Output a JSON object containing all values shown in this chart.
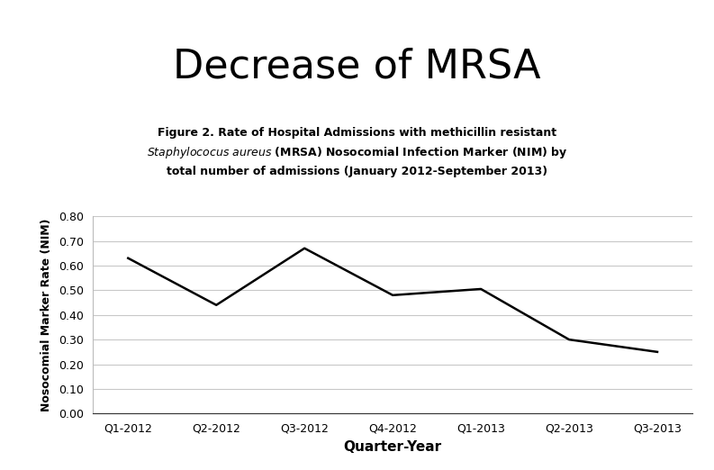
{
  "title": "Decrease of MRSA",
  "title_fontsize": 32,
  "subtitle_line1": "Figure 2. Rate of Hospital Admissions with methicillin resistant",
  "subtitle_line2_italic": "Staphylococus aureus",
  "subtitle_line2_rest": " (MRSA) Nosocomial Infection Marker (NIM) by",
  "subtitle_line3": "total number of admissions (January 2012-September 2013)",
  "subtitle_fontsize": 9,
  "xlabel": "Quarter-Year",
  "ylabel": "Nosocomial Marker Rate (NIM)",
  "xlabel_fontsize": 11,
  "ylabel_fontsize": 9,
  "categories": [
    "Q1-2012",
    "Q2-2012",
    "Q3-2012",
    "Q4-2012",
    "Q1-2013",
    "Q2-2013",
    "Q3-2013"
  ],
  "values": [
    0.63,
    0.44,
    0.67,
    0.48,
    0.505,
    0.3,
    0.25
  ],
  "ylim": [
    0.0,
    0.8
  ],
  "yticks": [
    0.0,
    0.1,
    0.2,
    0.3,
    0.4,
    0.5,
    0.6,
    0.7,
    0.8
  ],
  "line_color": "#000000",
  "line_width": 1.8,
  "background_color": "#ffffff",
  "grid_color": "#c8c8c8",
  "tick_fontsize": 9
}
